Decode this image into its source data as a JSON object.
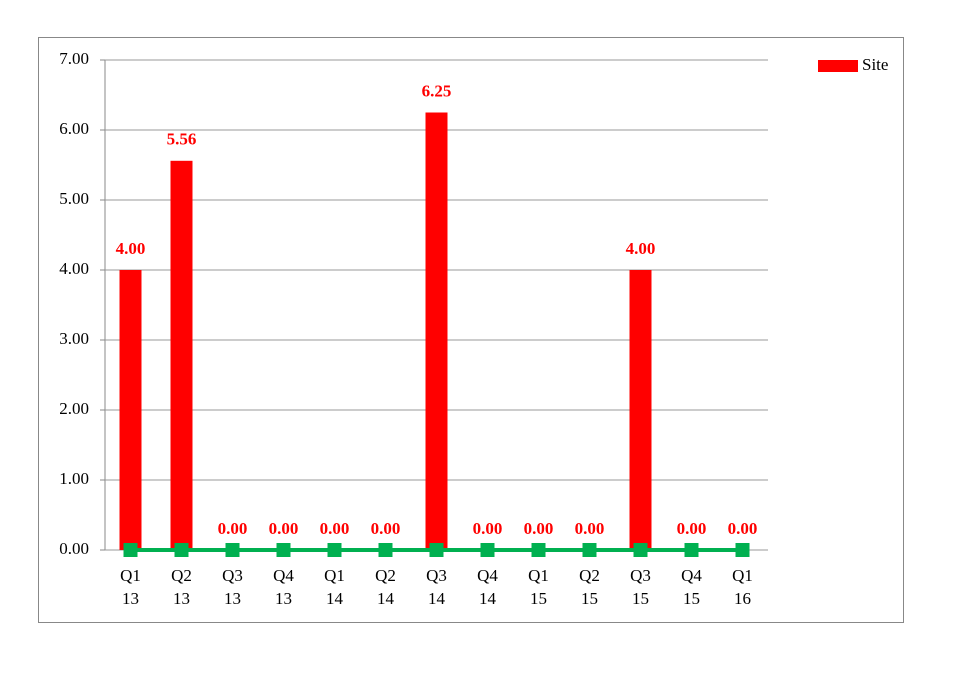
{
  "chart_data": {
    "type": "bar",
    "categories": [
      [
        "Q1",
        "13"
      ],
      [
        "Q2",
        "13"
      ],
      [
        "Q3",
        "13"
      ],
      [
        "Q4",
        "13"
      ],
      [
        "Q1",
        "14"
      ],
      [
        "Q2",
        "14"
      ],
      [
        "Q3",
        "14"
      ],
      [
        "Q4",
        "14"
      ],
      [
        "Q1",
        "15"
      ],
      [
        "Q2",
        "15"
      ],
      [
        "Q3",
        "15"
      ],
      [
        "Q4",
        "15"
      ],
      [
        "Q1",
        "16"
      ]
    ],
    "series": [
      {
        "name": "Site",
        "type": "bar",
        "color": "#ff0000",
        "values": [
          4,
          5.56,
          0,
          0,
          0,
          0,
          6.25,
          0,
          0,
          0,
          4,
          0,
          0
        ],
        "value_labels": [
          "4.00",
          "5.56",
          "0.00",
          "0.00",
          "0.00",
          "0.00",
          "6.25",
          "0.00",
          "0.00",
          "0.00",
          "4.00",
          "0.00",
          "0.00"
        ]
      },
      {
        "type": "line",
        "color": "#00b050",
        "values": [
          0,
          0,
          0,
          0,
          0,
          0,
          0,
          0,
          0,
          0,
          0,
          0,
          0
        ]
      }
    ],
    "ylim": [
      0,
      7
    ],
    "yticks": [
      {
        "value": 0,
        "label": "0.00"
      },
      {
        "value": 1,
        "label": "1.00"
      },
      {
        "value": 2,
        "label": "2.00"
      },
      {
        "value": 3,
        "label": "3.00"
      },
      {
        "value": 4,
        "label": "4.00"
      },
      {
        "value": 5,
        "label": "5.00"
      },
      {
        "value": 6,
        "label": "6.00"
      },
      {
        "value": 7,
        "label": "7.00"
      }
    ],
    "grid": true,
    "legend": "right"
  }
}
